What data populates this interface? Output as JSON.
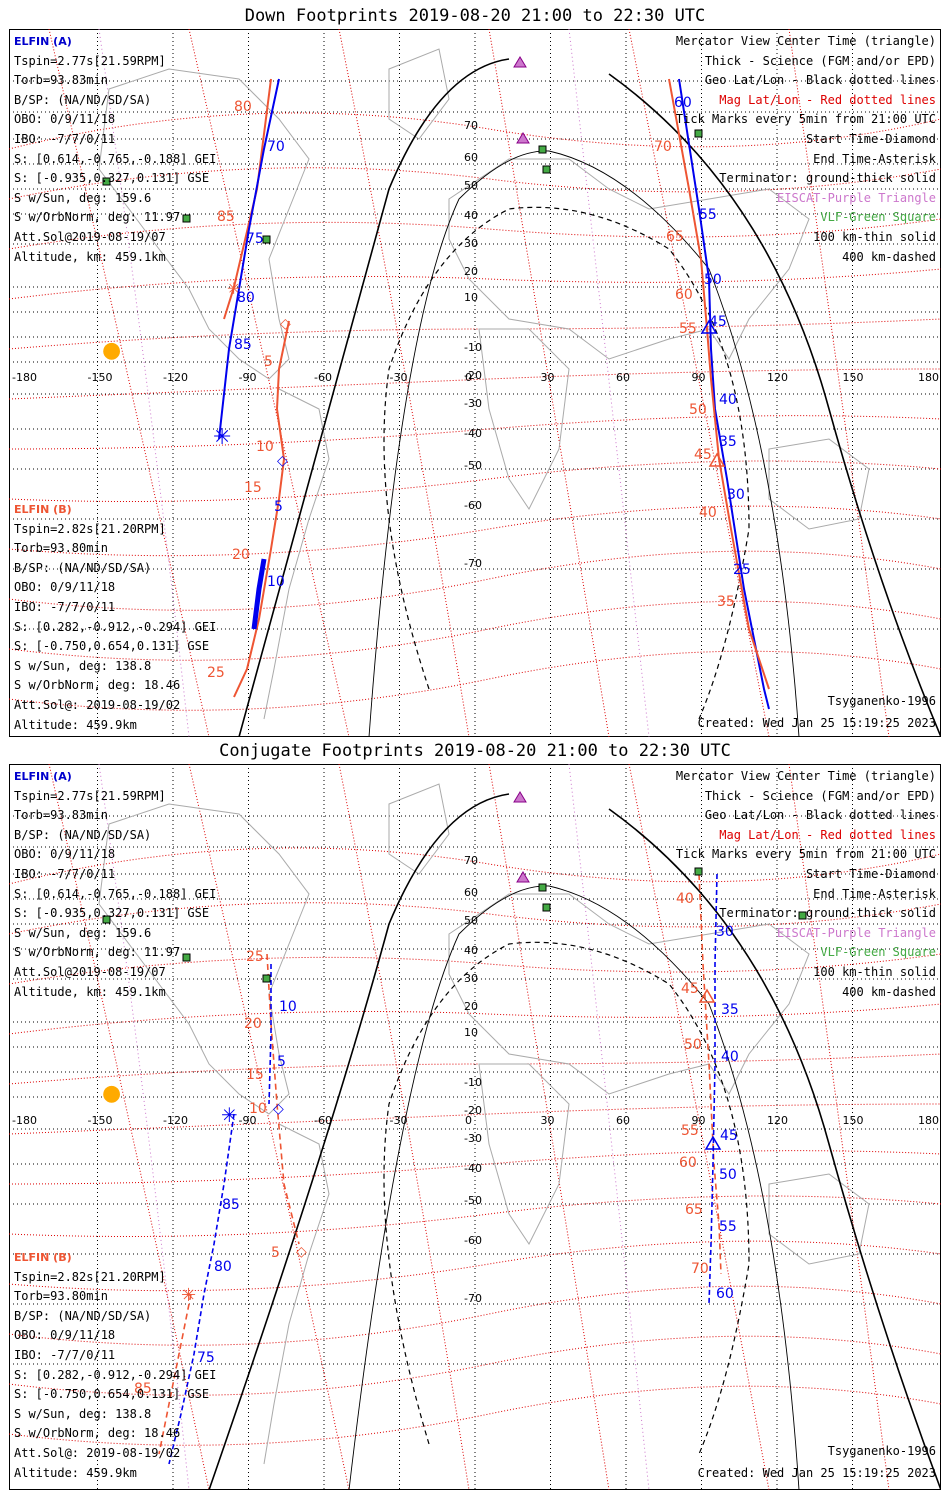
{
  "panels": [
    {
      "title": "Down Footprints 2019-08-20 21:00 to 22:30 UTC",
      "elfin_a": [
        "ELFIN (A)",
        "Tspin=2.77s[21.59RPM]",
        "Torb=93.83min",
        "B/SP: (NA/ND/SD/SA)",
        "OBO: 0/9/11/18",
        "IBO: -7/7/0/11",
        "S: [0.614,-0.765,-0.188] GEI",
        "S: [-0.935,0.327,0.131] GSE",
        "S w/Sun, deg: 159.6",
        "S w/OrbNorm, deg: 11.97",
        "Att.Sol@2019-08-19/07",
        "Altitude, km: 459.1km"
      ],
      "elfin_b": [
        "ELFIN (B)",
        "Tspin=2.82s[21.20RPM]",
        "Torb=93.80min",
        "B/SP: (NA/ND/SD/SA)",
        "OBO: 0/9/11/18",
        "IBO: -7/7/0/11",
        "S: [0.282,-0.912,-0.294] GEI",
        "S: [-0.750,0.654,0.131] GSE",
        "S w/Sun, deg: 138.8",
        "S w/OrbNorm, deg: 18.46",
        "Att.Sol@: 2019-08-19/02",
        "Altitude: 459.9km"
      ],
      "model": "Tsyganenko-1996",
      "created": "Created: Wed Jan 25 15:19:25 2023"
    },
    {
      "title": "Conjugate Footprints 2019-08-20 21:00 to 22:30 UTC",
      "elfin_a": [
        "ELFIN (A)",
        "Tspin=2.77s[21.59RPM]",
        "Torb=93.83min",
        "B/SP: (NA/ND/SD/SA)",
        "OBO: 0/9/11/18",
        "IBO: -7/7/0/11",
        "S: [0.614,-0.765,-0.188] GEI",
        "S: [-0.935,0.327,0.131] GSE",
        "S w/Sun, deg: 159.6",
        "S w/OrbNorm, deg: 11.97",
        "Att.Sol@2019-08-19/07",
        "Altitude, km: 459.1km"
      ],
      "elfin_b": [
        "ELFIN (B)",
        "Tspin=2.82s[21.20RPM]",
        "Torb=93.80min",
        "B/SP: (NA/ND/SD/SA)",
        "OBO: 0/9/11/18",
        "IBO: -7/7/0/11",
        "S: [0.282,-0.912,-0.294] GEI",
        "S: [-0.750,0.654,0.131] GSE",
        "S w/Sun, deg: 138.8",
        "S w/OrbNorm, deg: 18.46",
        "Att.Sol@: 2019-08-19/02",
        "Altitude: 459.9km"
      ],
      "model": "Tsyganenko-1996",
      "created": "Created: Wed Jan 25 15:19:25 2023"
    }
  ],
  "legend": [
    {
      "text": "Mercator View Center Time (triangle)",
      "color": "#000000"
    },
    {
      "text": "Thick - Science (FGM and/or EPD)",
      "color": "#000000"
    },
    {
      "text": "Geo Lat/Lon - Black dotted lines",
      "color": "#000000"
    },
    {
      "text": "Mag Lat/Lon - Red dotted lines",
      "color": "#dd0000"
    },
    {
      "text": "Tick Marks every 5min from 21:00 UTC",
      "color": "#000000"
    },
    {
      "text": "Start Time-Diamond",
      "color": "#000000"
    },
    {
      "text": "End Time-Asterisk",
      "color": "#000000"
    },
    {
      "text": "Terminator: ground-thick solid",
      "color": "#000000"
    },
    {
      "text": "EISCAT-Purple Triangle",
      "color": "#cc77cc"
    },
    {
      "text": "VLF-Green Square",
      "color": "#44aa44"
    },
    {
      "text": "100 km-thin solid",
      "color": "#000000"
    },
    {
      "text": "400 km-dashed",
      "color": "#000000"
    }
  ],
  "axis": {
    "lon_labels": [
      "-180",
      "-150",
      "-120",
      "-90",
      "-60",
      "-30",
      "0",
      "30",
      "60",
      "90",
      "120",
      "150",
      "180"
    ],
    "lat_labels": [
      "70",
      "60",
      "50",
      "40",
      "30",
      "20",
      "10",
      "-10",
      "-20",
      "-30",
      "-40",
      "-50",
      "-60",
      "-70"
    ]
  },
  "colors": {
    "elfin_a": "#0000ee",
    "elfin_b": "#ee5533",
    "mag_grid": "#dd0000",
    "geo_grid": "#000000",
    "eiscat": "#cc77cc",
    "vlf": "#44aa44",
    "sun": "#ffaa00"
  },
  "icons": {
    "sun": "sun-icon",
    "eiscat": "triangle-icon",
    "vlf": "square-icon"
  },
  "down_labels": {
    "a_west": [
      "70",
      "75",
      "80",
      "85"
    ],
    "a_east": [
      "60",
      "55",
      "50",
      "45",
      "40",
      "35",
      "30",
      "25"
    ],
    "b_west": [
      "80",
      "85",
      "5",
      "10",
      "15",
      "20",
      "25"
    ],
    "b_west_blue": [
      "5",
      "10"
    ],
    "b_east": [
      "70",
      "65",
      "60",
      "55",
      "50",
      "45",
      "40",
      "35"
    ]
  },
  "conj_labels": {
    "b_west": [
      "25",
      "20",
      "15",
      "10",
      "5"
    ],
    "a_west_blue": [
      "10",
      "5"
    ],
    "a_west": [
      "85",
      "80",
      "75"
    ],
    "b_west_low": [
      "85"
    ],
    "b_east": [
      "40",
      "45",
      "50",
      "55",
      "60",
      "65",
      "70"
    ],
    "a_east": [
      "30",
      "35",
      "40",
      "45",
      "50",
      "55",
      "60"
    ]
  }
}
